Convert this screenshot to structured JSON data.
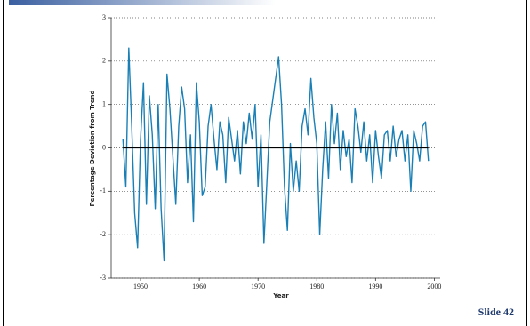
{
  "slide_label": "Slide 42",
  "chart_data": {
    "type": "line",
    "xlabel": "Year",
    "ylabel": "Percentage Deviation from Trend",
    "color": "#1a7fb5",
    "grid": true,
    "reference_line": 0,
    "xlim": [
      1945,
      2001
    ],
    "ylim": [
      -3,
      3
    ],
    "xticks": [
      1950,
      1960,
      1970,
      1980,
      1990,
      2000
    ],
    "yticks": [
      -3,
      -2,
      -1,
      0,
      1,
      2,
      3
    ],
    "x": [
      1947,
      1947.5,
      1948,
      1948.5,
      1949,
      1949.5,
      1950,
      1950.5,
      1951,
      1951.5,
      1952,
      1952.5,
      1953,
      1953.5,
      1954,
      1954.5,
      1955,
      1955.5,
      1956,
      1956.5,
      1957,
      1957.5,
      1958,
      1958.5,
      1959,
      1959.5,
      1960,
      1960.5,
      1961,
      1961.5,
      1962,
      1962.5,
      1963,
      1963.5,
      1964,
      1964.5,
      1965,
      1965.5,
      1966,
      1966.5,
      1967,
      1967.5,
      1968,
      1968.5,
      1969,
      1969.5,
      1970,
      1970.5,
      1971,
      1971.5,
      1972,
      1972.5,
      1973,
      1973.5,
      1974,
      1974.5,
      1975,
      1975.5,
      1976,
      1976.5,
      1977,
      1977.5,
      1978,
      1978.5,
      1979,
      1979.5,
      1980,
      1980.5,
      1981,
      1981.5,
      1982,
      1982.5,
      1983,
      1983.5,
      1984,
      1984.5,
      1985,
      1985.5,
      1986,
      1986.5,
      1987,
      1987.5,
      1988,
      1988.5,
      1989,
      1989.5,
      1990,
      1990.5,
      1991,
      1991.5,
      1992,
      1992.5,
      1993,
      1993.5,
      1994,
      1994.5,
      1995,
      1995.5,
      1996,
      1996.5,
      1997,
      1997.5,
      1998,
      1998.5,
      1999
    ],
    "values": [
      0.2,
      -0.9,
      2.3,
      0.5,
      -1.5,
      -2.3,
      0.2,
      1.5,
      -1.3,
      1.2,
      0.3,
      -1.4,
      1.0,
      -1.4,
      -2.6,
      1.7,
      0.9,
      -0.2,
      -1.3,
      0.5,
      1.4,
      0.9,
      -0.8,
      0.3,
      -1.7,
      1.5,
      0.6,
      -1.1,
      -0.9,
      0.5,
      1.0,
      0.2,
      -0.5,
      0.6,
      0.3,
      -0.8,
      0.7,
      0.2,
      -0.3,
      0.4,
      -0.6,
      0.6,
      0.1,
      0.8,
      0.2,
      1.0,
      -0.9,
      0.3,
      -2.2,
      -0.8,
      0.6,
      1.1,
      1.6,
      2.1,
      1.0,
      -0.9,
      -1.9,
      0.1,
      -1.0,
      -0.3,
      -1.0,
      0.5,
      0.9,
      0.3,
      1.6,
      0.7,
      0.1,
      -2.0,
      -0.5,
      0.6,
      -0.7,
      1.0,
      0.1,
      0.8,
      -0.5,
      0.4,
      -0.2,
      0.2,
      -0.8,
      0.9,
      0.5,
      -0.1,
      0.6,
      -0.3,
      0.3,
      -0.8,
      0.4,
      -0.2,
      -0.7,
      0.3,
      0.4,
      -0.3,
      0.5,
      -0.2,
      0.2,
      0.4,
      -0.3,
      0.3,
      -1.0,
      0.4,
      0.1,
      -0.3,
      0.5,
      0.6,
      -0.3
    ]
  }
}
